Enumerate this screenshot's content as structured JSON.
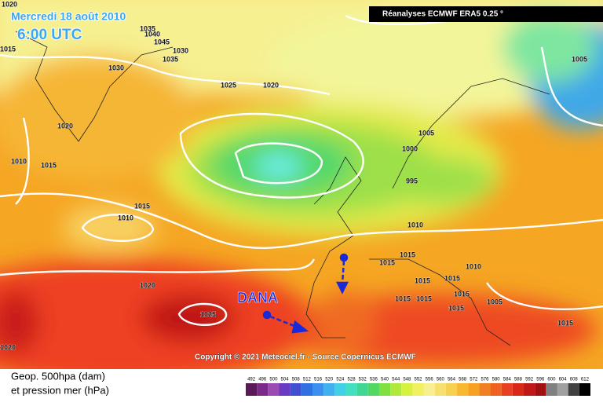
{
  "header": {
    "date": "Mercredi 18 août 2010",
    "time": "6:00 UTC",
    "source": "Réanalyses ECMWF ERA5 0.25 °"
  },
  "map": {
    "isobar_labels": [
      "1020",
      "1015",
      "1035",
      "1040",
      "1045",
      "1030",
      "1035",
      "1030",
      "1025",
      "1020",
      "1020",
      "1010",
      "1015",
      "1015",
      "1010",
      "1020",
      "1025",
      "1020",
      "1005",
      "1005",
      "1000",
      "995",
      "1010",
      "1015",
      "1015",
      "1015",
      "1015",
      "1015",
      "1015",
      "1015",
      "1015",
      "1010",
      "1005",
      "1015"
    ],
    "annotation": "DANA",
    "copyright": "Copyright © 2021 Meteociel.fr - Source Copernicus ECMWF"
  },
  "legend": {
    "line1": "Geop. 500hpa (dam)",
    "line2": "et pression mer (hPa)",
    "scale": [
      "492",
      "496",
      "500",
      "504",
      "508",
      "512",
      "516",
      "520",
      "524",
      "528",
      "532",
      "536",
      "540",
      "544",
      "548",
      "552",
      "556",
      "560",
      "564",
      "568",
      "572",
      "576",
      "580",
      "584",
      "588",
      "592",
      "596",
      "600",
      "604",
      "608",
      "612"
    ]
  }
}
